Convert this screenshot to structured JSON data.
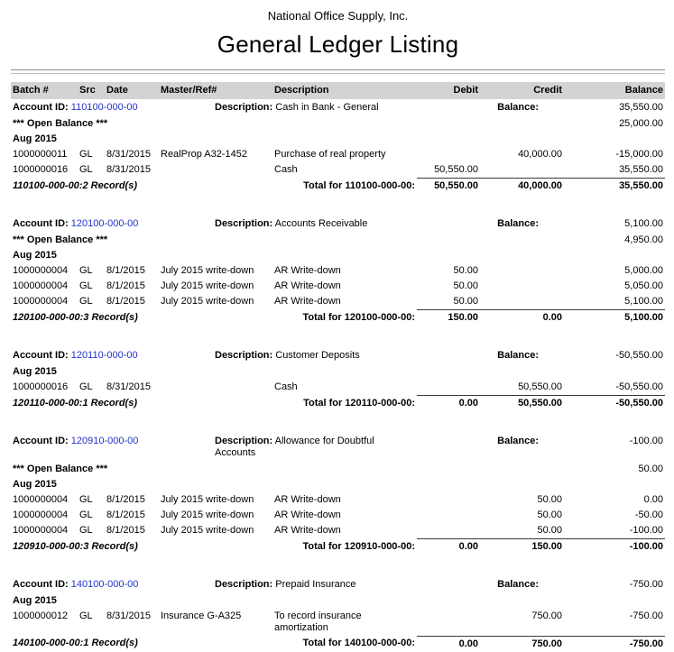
{
  "header": {
    "company": "National Office Supply, Inc.",
    "title": "General Ledger Listing"
  },
  "columns": {
    "batch": "Batch #",
    "src": "Src",
    "date": "Date",
    "master": "Master/Ref#",
    "description": "Description",
    "debit": "Debit",
    "credit": "Credit",
    "balance": "Balance"
  },
  "labels": {
    "account_id": "Account ID:",
    "description": "Description:",
    "balance": "Balance:",
    "open_balance": "*** Open Balance ***"
  },
  "accounts": [
    {
      "id": "110100-000-00",
      "name": "Cash in Bank - General",
      "balance": "35,550.00",
      "open_balance": "25,000.00",
      "period": "Aug 2015",
      "rows": [
        {
          "batch": "1000000011",
          "src": "GL",
          "date": "8/31/2015",
          "master": "RealProp A32-1452",
          "desc": "Purchase of real property",
          "debit": "",
          "credit": "40,000.00",
          "balance": "-15,000.00"
        },
        {
          "batch": "1000000016",
          "src": "GL",
          "date": "8/31/2015",
          "master": "",
          "desc": "Cash",
          "debit": "50,550.00",
          "credit": "",
          "balance": "35,550.00"
        }
      ],
      "records": "110100-000-00:2 Record(s)",
      "total_label": "Total for 110100-000-00:",
      "totals": {
        "debit": "50,550.00",
        "credit": "40,000.00",
        "balance": "35,550.00"
      }
    },
    {
      "id": "120100-000-00",
      "name": "Accounts Receivable",
      "balance": "5,100.00",
      "open_balance": "4,950.00",
      "period": "Aug 2015",
      "rows": [
        {
          "batch": "1000000004",
          "src": "GL",
          "date": "8/1/2015",
          "master": "July 2015 write-down",
          "desc": "AR Write-down",
          "debit": "50.00",
          "credit": "",
          "balance": "5,000.00"
        },
        {
          "batch": "1000000004",
          "src": "GL",
          "date": "8/1/2015",
          "master": "July 2015 write-down",
          "desc": "AR Write-down",
          "debit": "50.00",
          "credit": "",
          "balance": "5,050.00"
        },
        {
          "batch": "1000000004",
          "src": "GL",
          "date": "8/1/2015",
          "master": "July 2015 write-down",
          "desc": "AR Write-down",
          "debit": "50.00",
          "credit": "",
          "balance": "5,100.00"
        }
      ],
      "records": "120100-000-00:3 Record(s)",
      "total_label": "Total for 120100-000-00:",
      "totals": {
        "debit": "150.00",
        "credit": "0.00",
        "balance": "5,100.00"
      }
    },
    {
      "id": "120110-000-00",
      "name": "Customer Deposits",
      "balance": "-50,550.00",
      "period": "Aug 2015",
      "rows": [
        {
          "batch": "1000000016",
          "src": "GL",
          "date": "8/31/2015",
          "master": "",
          "desc": "Cash",
          "debit": "",
          "credit": "50,550.00",
          "balance": "-50,550.00"
        }
      ],
      "records": "120110-000-00:1 Record(s)",
      "total_label": "Total for 120110-000-00:",
      "totals": {
        "debit": "0.00",
        "credit": "50,550.00",
        "balance": "-50,550.00"
      }
    },
    {
      "id": "120910-000-00",
      "name": "Allowance for Doubtful Accounts",
      "balance": "-100.00",
      "open_balance": "50.00",
      "period": "Aug 2015",
      "rows": [
        {
          "batch": "1000000004",
          "src": "GL",
          "date": "8/1/2015",
          "master": "July 2015 write-down",
          "desc": "AR Write-down",
          "debit": "",
          "credit": "50.00",
          "balance": "0.00"
        },
        {
          "batch": "1000000004",
          "src": "GL",
          "date": "8/1/2015",
          "master": "July 2015 write-down",
          "desc": "AR Write-down",
          "debit": "",
          "credit": "50.00",
          "balance": "-50.00"
        },
        {
          "batch": "1000000004",
          "src": "GL",
          "date": "8/1/2015",
          "master": "July 2015 write-down",
          "desc": "AR Write-down",
          "debit": "",
          "credit": "50.00",
          "balance": "-100.00"
        }
      ],
      "records": "120910-000-00:3 Record(s)",
      "total_label": "Total for 120910-000-00:",
      "totals": {
        "debit": "0.00",
        "credit": "150.00",
        "balance": "-100.00"
      }
    },
    {
      "id": "140100-000-00",
      "name": "Prepaid Insurance",
      "balance": "-750.00",
      "period": "Aug 2015",
      "rows": [
        {
          "batch": "1000000012",
          "src": "GL",
          "date": "8/31/2015",
          "master": "Insurance G-A325",
          "desc": "To record insurance amortization",
          "debit": "",
          "credit": "750.00",
          "balance": "-750.00"
        }
      ],
      "records": "140100-000-00:1 Record(s)",
      "total_label": "Total for 140100-000-00:",
      "totals": {
        "debit": "0.00",
        "credit": "750.00",
        "balance": "-750.00"
      }
    }
  ]
}
